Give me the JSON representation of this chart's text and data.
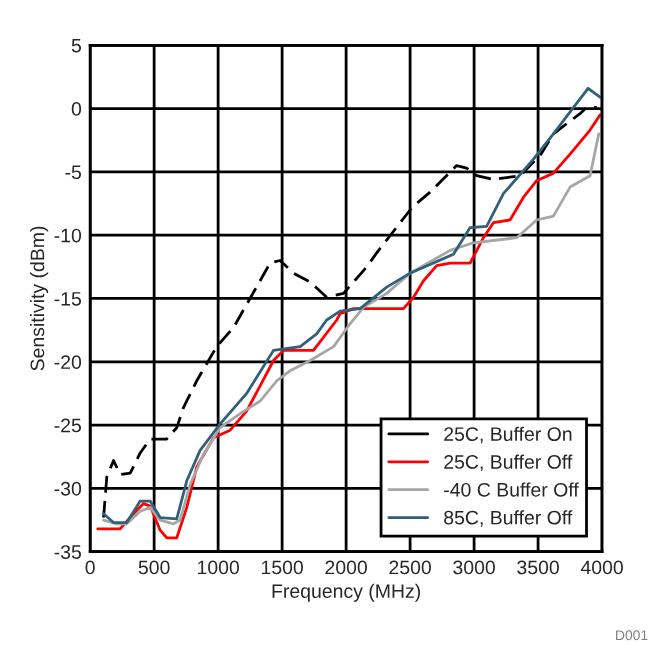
{
  "chart_data": {
    "type": "line",
    "xlabel": "Frequency (MHz)",
    "ylabel": "Sensitivity (dBm)",
    "xlim": [
      0,
      4000
    ],
    "xticks": [
      0,
      500,
      1000,
      1500,
      2000,
      2500,
      3000,
      3500,
      4000
    ],
    "ylim": [
      -35,
      5
    ],
    "yticks": [
      -35,
      -30,
      -25,
      -20,
      -15,
      -10,
      -5,
      0,
      5
    ],
    "grid": true,
    "legend": "bottom right",
    "annotations": [
      "D001"
    ],
    "series": [
      {
        "name": "25C, Buffer On",
        "color": "#000000",
        "line_style": "dashed",
        "x": [
          105,
          130,
          183,
          234,
          313,
          391,
          469,
          598,
          677,
          730,
          833,
          989,
          1120,
          1328,
          1406,
          1484,
          1589,
          1719,
          1848,
          1980,
          2161,
          2239,
          2516,
          2656,
          2864,
          2942,
          3020,
          3152,
          3359,
          3516,
          3620,
          3723,
          3828,
          3880,
          3958
        ],
        "values": [
          -32.3,
          -29.1,
          -27.8,
          -28.9,
          -28.8,
          -27.2,
          -26.1,
          -26.1,
          -25.2,
          -23.6,
          -21.5,
          -18.8,
          -17.3,
          -13.6,
          -12.2,
          -12.0,
          -13.0,
          -13.7,
          -14.9,
          -14.6,
          -12.5,
          -11.4,
          -7.8,
          -6.6,
          -4.5,
          -4.7,
          -5.3,
          -5.6,
          -5.3,
          -3.7,
          -2.0,
          -1.2,
          -0.4,
          0.1,
          0.1
        ]
      },
      {
        "name": "25C, Buffer Off",
        "color": "#ff0000",
        "line_style": "solid",
        "x": [
          60,
          234,
          339,
          417,
          469,
          547,
          598,
          677,
          755,
          833,
          964,
          1094,
          1223,
          1433,
          1511,
          1745,
          1927,
          1953,
          2058,
          2448,
          2527,
          2605,
          2708,
          2813,
          2969,
          3073,
          3152,
          3281,
          3386,
          3489,
          3620,
          3750,
          3906,
          3984
        ],
        "values": [
          -33.2,
          -33.2,
          -32.0,
          -31.2,
          -31.4,
          -33.3,
          -33.9,
          -33.9,
          -31.5,
          -28.3,
          -26.0,
          -25.4,
          -23.9,
          -19.9,
          -19.1,
          -19.1,
          -16.7,
          -16.2,
          -15.8,
          -15.8,
          -14.9,
          -13.6,
          -12.4,
          -12.2,
          -12.2,
          -10.2,
          -9.0,
          -8.8,
          -7.0,
          -5.7,
          -5.1,
          -3.6,
          -1.7,
          -0.5
        ]
      },
      {
        "name": "-40 C Buffer Off",
        "color": "#a6a6a6",
        "line_style": "solid",
        "x": [
          105,
          208,
          286,
          391,
          469,
          547,
          651,
          703,
          781,
          886,
          1016,
          1172,
          1328,
          1458,
          1563,
          1719,
          1902,
          2031,
          2136,
          2317,
          2500,
          2813,
          2995,
          3333,
          3489,
          3620,
          3750,
          3906,
          3974
        ],
        "values": [
          -32.5,
          -32.8,
          -32.8,
          -31.8,
          -31.5,
          -32.5,
          -32.8,
          -32.5,
          -29.7,
          -27.3,
          -25.2,
          -24.1,
          -23.1,
          -21.5,
          -20.7,
          -19.9,
          -18.8,
          -17.0,
          -15.7,
          -14.6,
          -13.0,
          -11.2,
          -10.6,
          -10.2,
          -8.8,
          -8.5,
          -6.2,
          -5.3,
          -2.0
        ]
      },
      {
        "name": "85C, Buffer Off",
        "color": "#31607a",
        "line_style": "solid",
        "x": [
          105,
          183,
          286,
          391,
          469,
          547,
          677,
          755,
          859,
          1016,
          1223,
          1433,
          1641,
          1770,
          1848,
          1953,
          2109,
          2317,
          2500,
          2839,
          2969,
          3098,
          3230,
          3464,
          3620,
          3777,
          3891,
          3984
        ],
        "values": [
          -32.0,
          -32.7,
          -32.7,
          -31.0,
          -31.0,
          -32.3,
          -32.4,
          -29.4,
          -27.0,
          -24.9,
          -22.5,
          -19.1,
          -18.8,
          -17.8,
          -16.7,
          -16.0,
          -15.8,
          -14.1,
          -13.0,
          -11.5,
          -9.4,
          -9.3,
          -6.7,
          -4.0,
          -2.0,
          0.1,
          1.6,
          0.9
        ]
      }
    ]
  }
}
